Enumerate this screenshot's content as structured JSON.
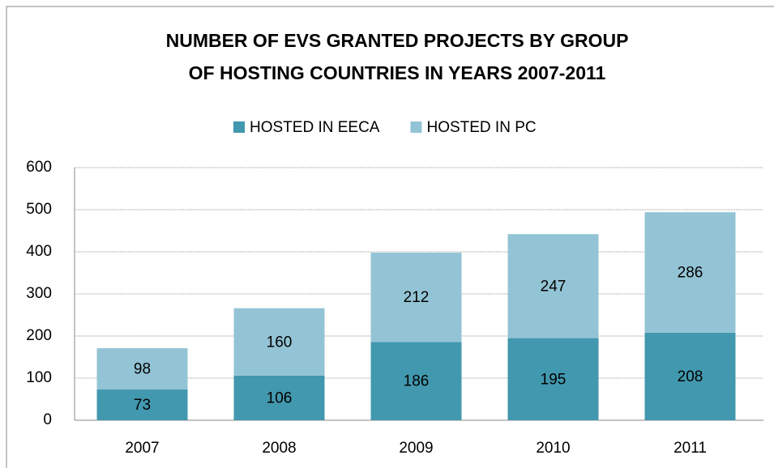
{
  "chart_data": {
    "type": "stacked_bar",
    "title": [
      "NUMBER OF EVS GRANTED PROJECTS BY GROUP",
      "OF HOSTING COUNTRIES IN YEARS 2007-2011"
    ],
    "categories": [
      "2007",
      "2008",
      "2009",
      "2010",
      "2011"
    ],
    "series": [
      {
        "name": "HOSTED IN EECA",
        "color": "#4298ae",
        "values": [
          73,
          106,
          186,
          195,
          208
        ]
      },
      {
        "name": "HOSTED IN PC",
        "color": "#93c4d5",
        "values": [
          98,
          160,
          212,
          247,
          286
        ]
      }
    ],
    "ylim": [
      0,
      600
    ],
    "yticks": [
      0,
      100,
      200,
      300,
      400,
      500,
      600
    ],
    "grid": true,
    "legend": "top"
  }
}
